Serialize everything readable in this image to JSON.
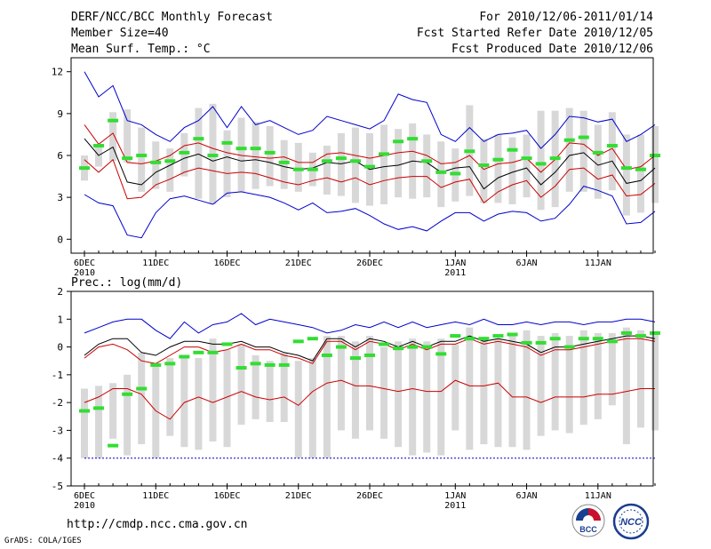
{
  "header": {
    "title": "DERF/NCC/BCC Monthly Forecast",
    "member_size": "Member Size=40",
    "variable": "Mean Surf. Temp.: °C",
    "forecast_range": "For 2010/12/06-2011/01/14",
    "start_date": "Fcst Started Refer Date 2010/12/05",
    "produced_date": "Fcst Produced Date 2010/12/06"
  },
  "footer": {
    "url": "http://cmdp.ncc.cma.gov.cn",
    "credit": "GrADS: COLA/IGES",
    "logo_bcc": "BCC",
    "logo_ncc": "NCC"
  },
  "colors": {
    "envelope": "#0000cc",
    "spread": "#cc0000",
    "mean": "#000000",
    "box": "#d8d8d8",
    "marker": "#33dd33",
    "frame": "#000000"
  },
  "chart_data": [
    {
      "type": "box",
      "title": "Mean Surf. Temp.: °C",
      "x_start": "2010-12-06",
      "days": 40,
      "x_tick_labels": [
        "6DEC",
        "11DEC",
        "16DEC",
        "21DEC",
        "26DEC",
        "1JAN",
        "6JAN",
        "11JAN"
      ],
      "x_tick_days": [
        0,
        5,
        10,
        15,
        20,
        26,
        31,
        36
      ],
      "x_year_labels": [
        {
          "day": 0,
          "label": "2010"
        },
        {
          "day": 26,
          "label": "2011"
        }
      ],
      "ylim": [
        -1,
        13
      ],
      "y_ticks": [
        0,
        3,
        6,
        9,
        12
      ],
      "series": [
        {
          "name": "max",
          "values": [
            12.0,
            10.2,
            11.0,
            8.5,
            8.2,
            7.5,
            7.0,
            8.0,
            8.5,
            9.5,
            8.0,
            9.5,
            8.2,
            8.5,
            8.0,
            7.5,
            7.8,
            8.8,
            8.5,
            8.2,
            7.9,
            8.5,
            10.4,
            10.0,
            9.8,
            7.5,
            7.0,
            8.0,
            7.0,
            7.5,
            7.6,
            7.8,
            6.5,
            7.5,
            8.8,
            8.7,
            8.4,
            8.6,
            7.0,
            7.5,
            8.2
          ]
        },
        {
          "name": "upper",
          "values": [
            8.2,
            6.8,
            7.6,
            5.5,
            5.4,
            5.6,
            6.0,
            6.7,
            6.9,
            6.5,
            6.2,
            6.0,
            5.9,
            5.8,
            5.9,
            5.5,
            5.5,
            6.1,
            6.2,
            6.0,
            5.8,
            6.0,
            6.2,
            6.3,
            6.0,
            5.4,
            5.5,
            6.0,
            5.0,
            5.4,
            5.5,
            5.8,
            4.8,
            5.7,
            6.9,
            6.8,
            6.0,
            6.5,
            5.0,
            5.2,
            6.0
          ]
        },
        {
          "name": "mean",
          "values": [
            7.2,
            6.0,
            6.6,
            4.1,
            3.9,
            4.8,
            5.3,
            5.8,
            6.1,
            5.6,
            5.9,
            5.6,
            5.7,
            5.5,
            5.2,
            5.0,
            5.1,
            5.5,
            5.4,
            5.6,
            5.0,
            5.2,
            5.3,
            5.6,
            5.5,
            4.8,
            5.1,
            5.2,
            3.6,
            4.4,
            4.8,
            5.1,
            3.9,
            4.8,
            6.0,
            6.2,
            5.3,
            5.6,
            4.0,
            4.2,
            5.1
          ]
        },
        {
          "name": "lower",
          "values": [
            5.7,
            4.8,
            5.7,
            2.9,
            3.0,
            3.9,
            4.3,
            4.8,
            5.1,
            4.9,
            4.7,
            4.8,
            4.7,
            4.4,
            4.1,
            3.9,
            4.2,
            4.4,
            4.1,
            4.4,
            3.9,
            4.2,
            4.4,
            4.5,
            4.5,
            3.7,
            4.1,
            4.3,
            2.6,
            3.4,
            3.9,
            4.2,
            3.0,
            3.8,
            5.0,
            5.1,
            4.3,
            4.6,
            3.1,
            3.2,
            4.0
          ]
        },
        {
          "name": "min",
          "values": [
            3.2,
            2.6,
            2.4,
            0.3,
            0.1,
            1.9,
            2.9,
            3.1,
            2.8,
            2.5,
            3.3,
            3.4,
            3.2,
            3.0,
            2.6,
            2.1,
            2.6,
            1.9,
            2.0,
            2.2,
            1.7,
            1.1,
            0.7,
            0.9,
            0.6,
            1.3,
            1.9,
            1.9,
            1.3,
            1.8,
            2.0,
            1.9,
            1.3,
            1.5,
            2.5,
            3.8,
            3.5,
            3.1,
            1.1,
            1.2,
            2.0
          ]
        },
        {
          "name": "box_high",
          "values": [
            6.0,
            6.6,
            9.1,
            9.3,
            8.0,
            7.0,
            6.5,
            7.6,
            9.4,
            9.7,
            7.8,
            8.7,
            8.4,
            8.1,
            7.1,
            6.9,
            6.2,
            6.7,
            7.6,
            8.0,
            7.6,
            8.2,
            7.9,
            8.3,
            7.5,
            7.0,
            6.5,
            9.6,
            7.2,
            7.5,
            7.3,
            7.5,
            9.2,
            9.2,
            9.4,
            9.2,
            8.2,
            9.1,
            7.5,
            7.5,
            8.1
          ]
        },
        {
          "name": "box_low",
          "values": [
            4.2,
            5.2,
            5.6,
            5.5,
            3.4,
            3.6,
            3.4,
            4.5,
            2.9,
            2.5,
            3.0,
            3.4,
            3.6,
            3.8,
            3.6,
            3.4,
            3.8,
            3.2,
            3.1,
            2.6,
            2.4,
            2.5,
            3.0,
            2.9,
            3.0,
            2.3,
            2.7,
            3.1,
            2.6,
            2.6,
            2.5,
            3.0,
            2.1,
            2.3,
            3.4,
            3.4,
            2.9,
            3.5,
            1.7,
            1.9,
            2.6
          ]
        },
        {
          "name": "marker",
          "values": [
            5.1,
            6.7,
            8.5,
            5.8,
            6.0,
            5.5,
            5.6,
            6.2,
            7.2,
            6.0,
            6.9,
            6.5,
            6.5,
            6.2,
            5.5,
            5.0,
            5.0,
            5.6,
            5.8,
            5.6,
            5.2,
            6.1,
            7.0,
            7.2,
            5.6,
            4.8,
            4.7,
            6.3,
            5.3,
            5.7,
            6.4,
            5.8,
            5.4,
            5.8,
            7.1,
            7.3,
            6.2,
            6.7,
            5.1,
            5.0,
            6.0
          ]
        }
      ]
    },
    {
      "type": "box",
      "title": "Prec.: log(mm/d)",
      "x_start": "2010-12-06",
      "days": 40,
      "x_tick_labels": [
        "6DEC",
        "11DEC",
        "16DEC",
        "21DEC",
        "26DEC",
        "1JAN",
        "6JAN",
        "11JAN"
      ],
      "x_tick_days": [
        0,
        5,
        10,
        15,
        20,
        26,
        31,
        36
      ],
      "x_year_labels": [
        {
          "day": 0,
          "label": "2010"
        },
        {
          "day": 26,
          "label": "2011"
        }
      ],
      "ylim": [
        -5,
        2
      ],
      "y_ticks": [
        -5,
        -4,
        -3,
        -2,
        -1,
        0,
        1,
        2
      ],
      "series": [
        {
          "name": "max",
          "values": [
            0.5,
            0.7,
            0.9,
            1.0,
            1.0,
            0.6,
            0.3,
            0.9,
            0.5,
            0.8,
            0.9,
            1.2,
            0.8,
            1.0,
            0.9,
            0.8,
            0.7,
            0.5,
            0.6,
            0.8,
            0.7,
            0.9,
            0.7,
            0.9,
            0.7,
            0.8,
            0.9,
            0.8,
            1.0,
            0.8,
            0.8,
            0.9,
            0.8,
            0.9,
            0.9,
            0.8,
            0.9,
            0.9,
            1.0,
            1.0,
            0.9
          ]
        },
        {
          "name": "upper",
          "values": [
            -0.4,
            0.0,
            0.1,
            -0.1,
            -0.5,
            -0.6,
            -0.3,
            0.0,
            0.0,
            -0.2,
            -0.1,
            0.1,
            -0.1,
            -0.1,
            -0.3,
            -0.4,
            -0.6,
            0.2,
            0.2,
            -0.1,
            0.2,
            0.1,
            -0.1,
            0.1,
            -0.1,
            0.1,
            0.1,
            0.3,
            0.1,
            0.2,
            0.1,
            0.0,
            -0.3,
            -0.1,
            -0.1,
            0.0,
            0.1,
            0.2,
            0.3,
            0.3,
            0.2
          ]
        },
        {
          "name": "mean",
          "values": [
            -0.3,
            0.1,
            0.3,
            0.3,
            -0.2,
            -0.3,
            0.0,
            0.2,
            0.2,
            0.1,
            0.1,
            0.2,
            0.0,
            0.0,
            -0.2,
            -0.3,
            -0.5,
            0.3,
            0.3,
            0.0,
            0.3,
            0.2,
            0.0,
            0.2,
            0.0,
            0.2,
            0.2,
            0.4,
            0.2,
            0.3,
            0.2,
            0.1,
            -0.2,
            0.0,
            0.0,
            0.1,
            0.2,
            0.3,
            0.4,
            0.4,
            0.3
          ]
        },
        {
          "name": "lower",
          "values": [
            -2.0,
            -1.8,
            -1.5,
            -1.5,
            -1.7,
            -2.3,
            -2.6,
            -2.0,
            -1.8,
            -2.0,
            -1.8,
            -1.6,
            -1.8,
            -1.9,
            -1.8,
            -2.1,
            -1.6,
            -1.3,
            -1.2,
            -1.4,
            -1.4,
            -1.5,
            -1.6,
            -1.5,
            -1.6,
            -1.6,
            -1.2,
            -1.4,
            -1.4,
            -1.3,
            -1.8,
            -1.8,
            -2.0,
            -1.8,
            -1.8,
            -1.8,
            -1.7,
            -1.7,
            -1.6,
            -1.5,
            -1.5
          ]
        },
        {
          "name": "min",
          "values": [
            -4.0,
            -4.0,
            -4.0,
            -4.0,
            -4.0,
            -4.0,
            -4.0,
            -4.0,
            -4.0,
            -4.0,
            -4.0,
            -4.0,
            -4.0,
            -4.0,
            -4.0,
            -4.0,
            -4.0,
            -4.0,
            -4.0,
            -4.0,
            -4.0,
            -4.0,
            -4.0,
            -4.0,
            -4.0,
            -4.0,
            -4.0,
            -4.0,
            -4.0,
            -4.0,
            -4.0,
            -4.0,
            -4.0,
            -4.0,
            -4.0,
            -4.0,
            -4.0,
            -4.0,
            -4.0,
            -4.0,
            -4.0
          ]
        },
        {
          "name": "box_high",
          "values": [
            -1.5,
            -1.4,
            -1.3,
            -1.0,
            -0.2,
            -0.6,
            -0.4,
            -0.3,
            -0.4,
            0.3,
            -0.1,
            0.1,
            -0.3,
            -0.5,
            -0.2,
            -0.5,
            -0.4,
            0.4,
            0.4,
            0.2,
            0.4,
            0.0,
            0.2,
            0.3,
            0.2,
            0.3,
            0.1,
            0.7,
            0.3,
            0.3,
            0.5,
            0.6,
            0.4,
            0.5,
            0.4,
            0.6,
            0.5,
            0.5,
            0.7,
            0.6,
            0.5
          ]
        },
        {
          "name": "box_low",
          "values": [
            -4.0,
            -4.0,
            -3.3,
            -3.9,
            -3.5,
            -4.0,
            -3.2,
            -3.6,
            -3.7,
            -3.4,
            -3.6,
            -2.8,
            -2.6,
            -2.7,
            -2.7,
            -4.0,
            -4.0,
            -4.0,
            -3.0,
            -3.3,
            -3.0,
            -3.3,
            -3.6,
            -3.9,
            -3.8,
            -3.9,
            -3.0,
            -3.7,
            -3.5,
            -3.6,
            -3.6,
            -3.7,
            -3.2,
            -3.0,
            -3.1,
            -2.8,
            -2.6,
            -2.1,
            -3.5,
            -2.9,
            -3.0
          ]
        },
        {
          "name": "marker",
          "values": [
            -2.3,
            -2.2,
            -3.55,
            -1.7,
            -1.5,
            -0.65,
            -0.6,
            -0.35,
            -0.2,
            -0.2,
            0.1,
            -0.75,
            -0.6,
            -0.65,
            -0.65,
            0.2,
            0.3,
            -0.3,
            0.0,
            -0.4,
            -0.3,
            0.1,
            -0.05,
            0.0,
            0.0,
            -0.25,
            0.4,
            0.3,
            0.3,
            0.4,
            0.45,
            0.15,
            0.15,
            0.3,
            0.0,
            0.3,
            0.3,
            0.2,
            0.5,
            0.4,
            0.5
          ]
        }
      ]
    }
  ]
}
